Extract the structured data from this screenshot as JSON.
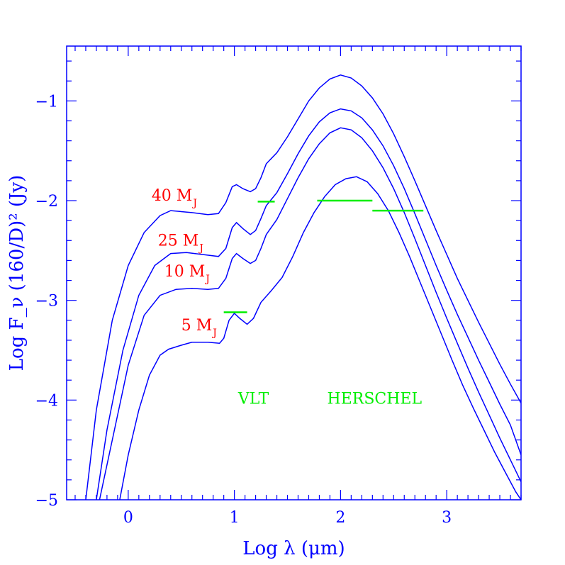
{
  "chart_data": {
    "type": "line",
    "xlabel": "Log λ (μm)",
    "ylabel": "Log F_ν (160/D)² (Jy)",
    "xlim": [
      -0.58,
      3.7
    ],
    "ylim": [
      -5,
      -0.45
    ],
    "x_ticks": [
      0,
      1,
      2,
      3
    ],
    "x_tick_labels": [
      "0",
      "1",
      "2",
      "3"
    ],
    "y_ticks": [
      -1,
      -2,
      -3,
      -4,
      -5
    ],
    "y_tick_labels": [
      "−1",
      "−2",
      "−3",
      "−4",
      "−5"
    ],
    "series": [
      {
        "name": "40 M_J",
        "label": "40 M",
        "label_sub": "J",
        "points": [
          [
            -0.4,
            -5.0
          ],
          [
            -0.3,
            -4.1
          ],
          [
            -0.15,
            -3.2
          ],
          [
            0,
            -2.65
          ],
          [
            0.15,
            -2.32
          ],
          [
            0.3,
            -2.15
          ],
          [
            0.4,
            -2.1
          ],
          [
            0.6,
            -2.12
          ],
          [
            0.75,
            -2.14
          ],
          [
            0.85,
            -2.13
          ],
          [
            0.92,
            -2.02
          ],
          [
            0.98,
            -1.86
          ],
          [
            1.02,
            -1.84
          ],
          [
            1.08,
            -1.88
          ],
          [
            1.15,
            -1.91
          ],
          [
            1.2,
            -1.88
          ],
          [
            1.25,
            -1.77
          ],
          [
            1.3,
            -1.63
          ],
          [
            1.4,
            -1.52
          ],
          [
            1.5,
            -1.36
          ],
          [
            1.6,
            -1.18
          ],
          [
            1.7,
            -1.0
          ],
          [
            1.8,
            -0.87
          ],
          [
            1.9,
            -0.78
          ],
          [
            2.0,
            -0.74
          ],
          [
            2.1,
            -0.77
          ],
          [
            2.2,
            -0.85
          ],
          [
            2.3,
            -0.97
          ],
          [
            2.4,
            -1.13
          ],
          [
            2.5,
            -1.33
          ],
          [
            2.6,
            -1.56
          ],
          [
            2.7,
            -1.8
          ],
          [
            2.8,
            -2.05
          ],
          [
            2.9,
            -2.3
          ],
          [
            3.0,
            -2.54
          ],
          [
            3.1,
            -2.78
          ],
          [
            3.2,
            -3.0
          ],
          [
            3.3,
            -3.22
          ],
          [
            3.4,
            -3.43
          ],
          [
            3.5,
            -3.64
          ],
          [
            3.6,
            -3.84
          ],
          [
            3.7,
            -4.03
          ]
        ]
      },
      {
        "name": "25 M_J",
        "label": "25 M",
        "label_sub": "J",
        "points": [
          [
            -0.3,
            -5.0
          ],
          [
            -0.2,
            -4.3
          ],
          [
            -0.05,
            -3.5
          ],
          [
            0.1,
            -2.95
          ],
          [
            0.25,
            -2.65
          ],
          [
            0.4,
            -2.53
          ],
          [
            0.55,
            -2.52
          ],
          [
            0.7,
            -2.54
          ],
          [
            0.85,
            -2.56
          ],
          [
            0.92,
            -2.48
          ],
          [
            0.98,
            -2.27
          ],
          [
            1.02,
            -2.22
          ],
          [
            1.08,
            -2.28
          ],
          [
            1.15,
            -2.34
          ],
          [
            1.2,
            -2.3
          ],
          [
            1.25,
            -2.18
          ],
          [
            1.3,
            -2.05
          ],
          [
            1.4,
            -1.92
          ],
          [
            1.5,
            -1.73
          ],
          [
            1.6,
            -1.53
          ],
          [
            1.7,
            -1.35
          ],
          [
            1.8,
            -1.21
          ],
          [
            1.9,
            -1.12
          ],
          [
            2.0,
            -1.08
          ],
          [
            2.1,
            -1.1
          ],
          [
            2.2,
            -1.17
          ],
          [
            2.3,
            -1.29
          ],
          [
            2.4,
            -1.45
          ],
          [
            2.5,
            -1.65
          ],
          [
            2.6,
            -1.88
          ],
          [
            2.7,
            -2.13
          ],
          [
            2.8,
            -2.39
          ],
          [
            2.9,
            -2.65
          ],
          [
            3.0,
            -2.9
          ],
          [
            3.1,
            -3.14
          ],
          [
            3.2,
            -3.37
          ],
          [
            3.3,
            -3.6
          ],
          [
            3.4,
            -3.82
          ],
          [
            3.5,
            -4.04
          ],
          [
            3.6,
            -4.25
          ],
          [
            3.7,
            -4.55
          ]
        ]
      },
      {
        "name": "10 M_J",
        "label": "10 M",
        "label_sub": "J",
        "points": [
          [
            -0.27,
            -5.0
          ],
          [
            -0.15,
            -4.4
          ],
          [
            0,
            -3.65
          ],
          [
            0.15,
            -3.15
          ],
          [
            0.3,
            -2.95
          ],
          [
            0.45,
            -2.89
          ],
          [
            0.6,
            -2.88
          ],
          [
            0.75,
            -2.89
          ],
          [
            0.85,
            -2.88
          ],
          [
            0.92,
            -2.78
          ],
          [
            0.98,
            -2.58
          ],
          [
            1.02,
            -2.53
          ],
          [
            1.08,
            -2.58
          ],
          [
            1.15,
            -2.63
          ],
          [
            1.2,
            -2.6
          ],
          [
            1.25,
            -2.48
          ],
          [
            1.3,
            -2.34
          ],
          [
            1.4,
            -2.19
          ],
          [
            1.5,
            -1.98
          ],
          [
            1.6,
            -1.77
          ],
          [
            1.7,
            -1.58
          ],
          [
            1.8,
            -1.43
          ],
          [
            1.9,
            -1.32
          ],
          [
            2.0,
            -1.27
          ],
          [
            2.1,
            -1.29
          ],
          [
            2.2,
            -1.37
          ],
          [
            2.3,
            -1.5
          ],
          [
            2.4,
            -1.67
          ],
          [
            2.5,
            -1.88
          ],
          [
            2.6,
            -2.12
          ],
          [
            2.7,
            -2.38
          ],
          [
            2.8,
            -2.65
          ],
          [
            2.9,
            -2.92
          ],
          [
            3.0,
            -3.18
          ],
          [
            3.1,
            -3.43
          ],
          [
            3.2,
            -3.68
          ],
          [
            3.3,
            -3.92
          ],
          [
            3.4,
            -4.15
          ],
          [
            3.5,
            -4.38
          ],
          [
            3.6,
            -4.6
          ],
          [
            3.7,
            -4.82
          ]
        ]
      },
      {
        "name": "5 M_J",
        "label": "5 M",
        "label_sub": "J",
        "points": [
          [
            -0.08,
            -5.0
          ],
          [
            0,
            -4.55
          ],
          [
            0.1,
            -4.1
          ],
          [
            0.2,
            -3.75
          ],
          [
            0.3,
            -3.55
          ],
          [
            0.38,
            -3.49
          ],
          [
            0.5,
            -3.45
          ],
          [
            0.6,
            -3.42
          ],
          [
            0.75,
            -3.42
          ],
          [
            0.86,
            -3.43
          ],
          [
            0.9,
            -3.38
          ],
          [
            0.95,
            -3.2
          ],
          [
            1.0,
            -3.13
          ],
          [
            1.05,
            -3.18
          ],
          [
            1.12,
            -3.24
          ],
          [
            1.18,
            -3.18
          ],
          [
            1.25,
            -3.02
          ],
          [
            1.35,
            -2.9
          ],
          [
            1.45,
            -2.77
          ],
          [
            1.55,
            -2.56
          ],
          [
            1.65,
            -2.32
          ],
          [
            1.75,
            -2.12
          ],
          [
            1.85,
            -1.96
          ],
          [
            1.95,
            -1.84
          ],
          [
            2.05,
            -1.78
          ],
          [
            2.15,
            -1.76
          ],
          [
            2.25,
            -1.81
          ],
          [
            2.35,
            -1.93
          ],
          [
            2.45,
            -2.1
          ],
          [
            2.55,
            -2.32
          ],
          [
            2.65,
            -2.56
          ],
          [
            2.75,
            -2.82
          ],
          [
            2.85,
            -3.08
          ],
          [
            2.95,
            -3.34
          ],
          [
            3.05,
            -3.6
          ],
          [
            3.15,
            -3.85
          ],
          [
            3.25,
            -4.08
          ],
          [
            3.35,
            -4.3
          ],
          [
            3.45,
            -4.52
          ],
          [
            3.55,
            -4.72
          ],
          [
            3.65,
            -4.92
          ],
          [
            3.7,
            -5.0
          ]
        ]
      }
    ],
    "label_positions": [
      {
        "series": "40 M_J",
        "x": 0.22,
        "y": -2.0
      },
      {
        "series": "25 M_J",
        "x": 0.28,
        "y": -2.45
      },
      {
        "series": "10 M_J",
        "x": 0.34,
        "y": -2.76
      },
      {
        "series": "5 M_J",
        "x": 0.5,
        "y": -3.3
      }
    ],
    "observations": [
      {
        "instrument": "VLT",
        "x_start": 0.9,
        "x_end": 1.12,
        "y": -3.12
      },
      {
        "instrument": "VLT",
        "x_start": 1.22,
        "x_end": 1.38,
        "y": -2.01
      },
      {
        "instrument": "HERSCHEL",
        "x_start": 1.78,
        "x_end": 2.3,
        "y": -2.0
      },
      {
        "instrument": "HERSCHEL",
        "x_start": 2.3,
        "x_end": 2.78,
        "y": -2.1
      }
    ],
    "instrument_labels": [
      {
        "text": "VLT",
        "x": 1.18,
        "y": -3.98
      },
      {
        "text": "HERSCHEL",
        "x": 2.32,
        "y": -3.98
      }
    ],
    "colors": {
      "axes": "#0000ff",
      "curves": "#0000ff",
      "mass_labels": "#ff0000",
      "observations": "#00ee00"
    }
  }
}
